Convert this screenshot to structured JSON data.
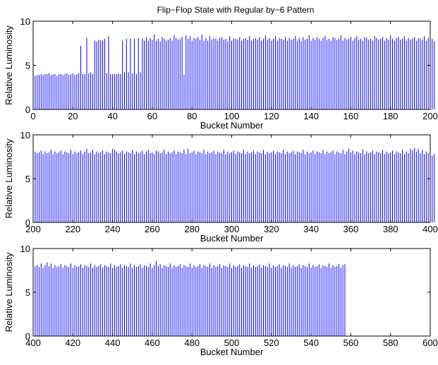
{
  "title": "Flip−Flop State with Regular by−6 Pattern",
  "chart_data": [
    {
      "type": "bar",
      "xlabel": "Bucket Number",
      "ylabel": "Relative Luminosity",
      "xlim": [
        0,
        200
      ],
      "ylim": [
        0,
        10
      ],
      "xticks": [
        "0",
        "20",
        "40",
        "60",
        "80",
        "100",
        "120",
        "140",
        "160",
        "180",
        "200"
      ],
      "yticks": [
        "0",
        "5",
        "10"
      ],
      "bar_color": "#0000ff",
      "x_start": 1,
      "values": [
        3.8,
        3.9,
        3.9,
        4.0,
        3.9,
        4.0,
        4.0,
        4.1,
        3.9,
        4.0,
        4.0,
        3.8,
        4.0,
        4.0,
        3.9,
        4.0,
        4.1,
        3.9,
        4.0,
        4.1,
        3.9,
        4.0,
        4.1,
        7.2,
        4.0,
        4.0,
        8.1,
        4.1,
        4.2,
        4.0,
        7.8,
        7.7,
        7.9,
        7.8,
        7.8,
        8.0,
        4.1,
        8.3,
        4.0,
        4.0,
        4.0,
        4.0,
        4.1,
        4.0,
        7.8,
        4.2,
        8.0,
        4.2,
        8.0,
        4.1,
        8.0,
        4.0,
        8.1,
        4.2,
        8.0,
        7.8,
        8.2,
        7.8,
        8.1,
        7.9,
        8.5,
        7.8,
        8.0,
        7.7,
        8.2,
        8.0,
        7.8,
        7.9,
        8.1,
        7.8,
        8.4,
        8.1,
        7.9,
        8.0,
        8.2,
        3.9,
        8.4,
        8.0,
        8.3,
        7.8,
        8.1,
        8.0,
        8.2,
        7.9,
        8.5,
        7.8,
        8.1,
        7.8,
        8.3,
        7.9,
        8.1,
        8.0,
        7.8,
        8.1,
        8.2,
        7.9,
        8.0,
        7.7,
        8.3,
        7.8,
        8.1,
        8.0,
        7.9,
        8.2,
        7.8,
        8.0,
        8.1,
        7.9,
        8.3,
        7.8,
        8.0,
        8.1,
        7.9,
        8.2,
        7.8,
        8.0,
        8.4,
        7.9,
        8.1,
        7.8,
        8.0,
        8.3,
        7.8,
        8.1,
        8.0,
        7.9,
        8.2,
        7.8,
        8.1,
        7.9,
        8.0,
        8.3,
        7.8,
        8.1,
        7.7,
        8.2,
        7.9,
        8.0,
        8.4,
        7.8,
        8.1,
        7.9,
        8.2,
        8.0,
        7.8,
        8.1,
        8.3,
        7.9,
        8.0,
        7.8,
        8.2,
        8.1,
        7.9,
        8.0,
        8.4,
        7.8,
        8.1,
        7.9,
        8.0,
        8.2,
        7.8,
        8.1,
        8.3,
        7.9,
        8.0,
        7.8,
        8.2,
        8.1,
        7.9,
        8.0,
        7.8,
        8.3,
        8.1,
        7.9,
        8.0,
        8.2,
        7.8,
        8.1,
        7.9,
        8.4,
        8.0,
        7.8,
        8.1,
        8.2,
        7.9,
        8.0,
        8.3,
        7.8,
        8.1,
        7.9,
        8.0,
        8.2,
        7.8,
        8.1,
        8.0,
        7.9,
        8.3,
        7.8,
        8.1,
        7.9,
        8.0,
        7.7
      ]
    },
    {
      "type": "bar",
      "xlabel": "Bucket Number",
      "ylabel": "Relative Luminosity",
      "xlim": [
        200,
        400
      ],
      "ylim": [
        0,
        10
      ],
      "xticks": [
        "200",
        "220",
        "240",
        "260",
        "280",
        "300",
        "320",
        "340",
        "360",
        "380",
        "400"
      ],
      "yticks": [
        "0",
        "5",
        "10"
      ],
      "bar_color": "#0000ff",
      "x_start": 201,
      "values": [
        8.1,
        7.9,
        8.0,
        8.2,
        7.8,
        8.1,
        7.9,
        8.0,
        8.3,
        7.8,
        8.1,
        7.9,
        8.0,
        8.2,
        7.8,
        8.1,
        8.0,
        7.9,
        8.3,
        7.8,
        8.1,
        7.9,
        8.0,
        8.2,
        7.8,
        8.1,
        8.4,
        7.9,
        8.0,
        8.3,
        7.8,
        8.1,
        7.9,
        8.0,
        8.2,
        7.8,
        8.1,
        8.0,
        7.9,
        8.4,
        8.3,
        8.1,
        7.9,
        8.0,
        8.2,
        7.8,
        8.1,
        8.0,
        7.9,
        8.3,
        7.8,
        8.1,
        7.9,
        8.0,
        8.2,
        7.8,
        8.1,
        8.3,
        7.9,
        8.0,
        7.8,
        8.2,
        8.1,
        7.9,
        8.0,
        8.3,
        7.8,
        8.1,
        7.9,
        8.0,
        8.2,
        7.8,
        8.1,
        8.0,
        7.9,
        8.3,
        7.8,
        8.4,
        7.9,
        8.0,
        8.2,
        7.8,
        8.1,
        8.0,
        7.9,
        8.3,
        7.8,
        8.1,
        7.9,
        8.0,
        8.2,
        7.8,
        8.1,
        8.0,
        7.9,
        8.3,
        7.8,
        8.1,
        7.9,
        8.0,
        8.2,
        7.8,
        8.1,
        8.0,
        7.9,
        8.3,
        7.8,
        8.1,
        7.9,
        8.0,
        8.2,
        7.8,
        8.1,
        8.0,
        7.9,
        8.3,
        7.8,
        8.1,
        7.9,
        8.0,
        8.2,
        7.8,
        8.1,
        8.0,
        7.9,
        8.3,
        7.8,
        8.1,
        7.9,
        8.0,
        8.2,
        7.8,
        8.1,
        8.0,
        7.9,
        8.3,
        7.8,
        8.1,
        7.9,
        8.0,
        8.2,
        7.8,
        8.1,
        8.0,
        7.9,
        8.3,
        7.8,
        8.1,
        7.9,
        8.0,
        8.2,
        7.8,
        8.1,
        8.0,
        7.9,
        8.3,
        7.8,
        8.1,
        8.4,
        8.0,
        8.2,
        7.8,
        8.1,
        8.0,
        7.9,
        8.3,
        7.8,
        8.1,
        7.9,
        8.0,
        8.2,
        7.8,
        8.1,
        8.0,
        7.9,
        8.3,
        7.8,
        8.1,
        7.9,
        8.0,
        8.2,
        7.8,
        8.1,
        8.0,
        7.9,
        8.3,
        7.8,
        8.1,
        7.9,
        8.4,
        8.2,
        8.5,
        8.1,
        8.4,
        7.9,
        8.3,
        7.8,
        8.1,
        7.9,
        8.0,
        7.6,
        7.8
      ]
    },
    {
      "type": "bar",
      "xlabel": "Bucket Number",
      "ylabel": "Relative Luminosity",
      "xlim": [
        400,
        600
      ],
      "ylim": [
        0,
        10
      ],
      "xticks": [
        "400",
        "420",
        "440",
        "460",
        "480",
        "500",
        "520",
        "540",
        "560",
        "580",
        "600"
      ],
      "yticks": [
        "0",
        "5",
        "10"
      ],
      "bar_color": "#0000ff",
      "x_start": 401,
      "values": [
        8.0,
        8.1,
        7.9,
        8.3,
        7.8,
        8.1,
        8.4,
        8.0,
        8.3,
        7.8,
        8.1,
        7.9,
        8.0,
        8.2,
        7.8,
        8.1,
        8.0,
        7.9,
        8.3,
        7.8,
        8.1,
        7.9,
        8.0,
        8.2,
        7.8,
        8.1,
        8.0,
        7.9,
        8.3,
        7.8,
        8.1,
        7.9,
        8.0,
        8.2,
        7.8,
        8.1,
        8.0,
        7.9,
        8.3,
        7.8,
        8.1,
        7.9,
        8.0,
        8.2,
        7.8,
        8.1,
        8.0,
        7.9,
        8.3,
        7.8,
        8.1,
        7.9,
        8.0,
        8.2,
        7.8,
        8.1,
        8.0,
        7.9,
        8.3,
        7.8,
        8.1,
        8.6,
        8.0,
        8.2,
        7.8,
        8.1,
        8.0,
        7.9,
        8.3,
        7.8,
        8.1,
        7.9,
        8.0,
        8.2,
        7.8,
        8.1,
        8.0,
        7.9,
        8.3,
        7.8,
        8.1,
        7.9,
        8.0,
        8.2,
        7.8,
        8.1,
        8.0,
        7.9,
        8.3,
        7.8,
        8.1,
        7.9,
        8.0,
        8.2,
        7.8,
        8.1,
        8.0,
        7.9,
        8.3,
        7.8,
        8.1,
        7.9,
        8.0,
        8.2,
        7.8,
        8.1,
        8.0,
        7.9,
        8.3,
        7.8,
        8.1,
        7.9,
        8.0,
        8.2,
        7.8,
        8.1,
        8.0,
        7.9,
        8.3,
        7.8,
        8.1,
        7.9,
        8.0,
        8.2,
        7.8,
        8.1,
        8.0,
        7.9,
        8.3,
        7.8,
        8.1,
        7.9,
        8.0,
        8.2,
        7.8,
        8.1,
        8.0,
        7.9,
        8.3,
        7.8,
        8.1,
        7.9,
        8.0,
        8.2,
        7.8,
        8.1,
        8.0,
        7.9,
        8.3,
        7.8,
        8.1,
        7.9,
        8.0,
        8.2,
        7.8,
        8.1,
        8.2
      ]
    }
  ]
}
